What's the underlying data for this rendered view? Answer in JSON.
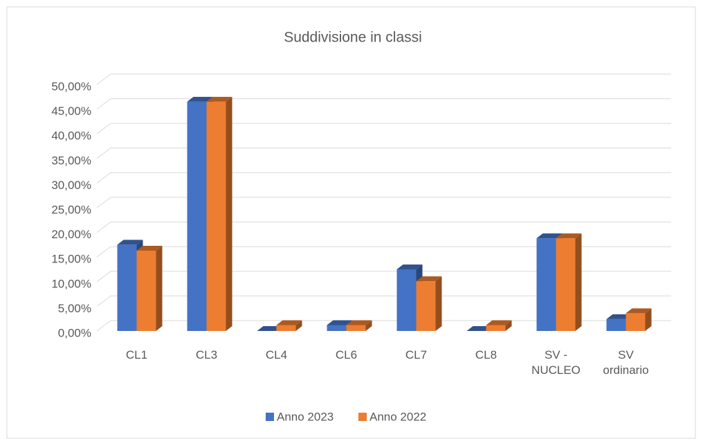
{
  "chart_data": {
    "type": "bar3d",
    "title": "Suddivisione in classi",
    "categories": [
      "CL1",
      "CL3",
      "CL4",
      "CL6",
      "CL7",
      "CL8",
      "SV - NUCLEO",
      "SV ordinario"
    ],
    "series": [
      {
        "name": "Anno 2023",
        "color": "#4472c4",
        "values": [
          17.5,
          46.5,
          0,
          1.2,
          12.5,
          0,
          18.8,
          2.4
        ]
      },
      {
        "name": "Anno 2022",
        "color": "#ed7d31",
        "values": [
          16.3,
          46.5,
          1.2,
          1.2,
          10.1,
          1.2,
          18.8,
          3.6
        ]
      }
    ],
    "ylim": [
      0,
      50
    ],
    "yticks": [
      {
        "value": 0,
        "label": "0,00%"
      },
      {
        "value": 5,
        "label": "5,00%"
      },
      {
        "value": 10,
        "label": "10,00%"
      },
      {
        "value": 15,
        "label": "15,00%"
      },
      {
        "value": 20,
        "label": "20,00%"
      },
      {
        "value": 25,
        "label": "25,00%"
      },
      {
        "value": 30,
        "label": "30,00%"
      },
      {
        "value": 35,
        "label": "35,00%"
      },
      {
        "value": 40,
        "label": "40,00%"
      },
      {
        "value": 45,
        "label": "45,00%"
      },
      {
        "value": 50,
        "label": "50,00%"
      }
    ],
    "grid": true,
    "legend": "bottom"
  }
}
